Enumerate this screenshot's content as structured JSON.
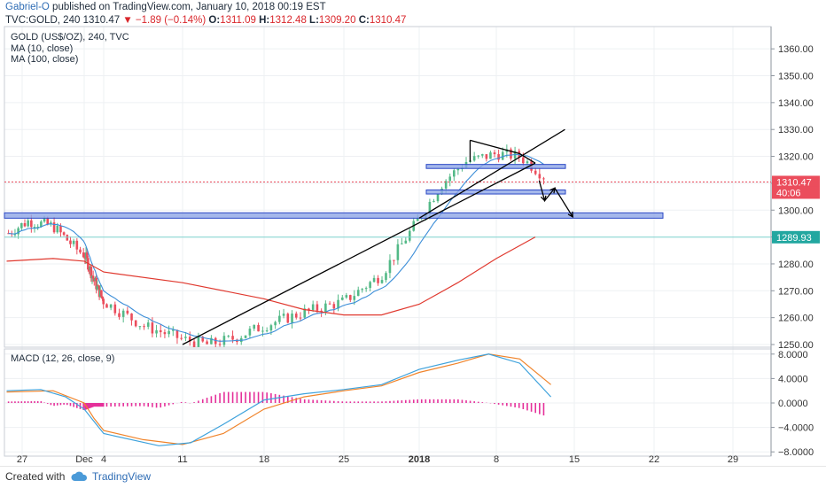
{
  "header": {
    "author": "Gabriel-O",
    "published": " published on TradingView.com, January 10, 2018 00:19 EST",
    "symbol": "TVC:GOLD, 240",
    "last": "1310.47",
    "change": "▼ −1.89 (−0.14%)",
    "o_label": "O:",
    "o": "1311.09",
    "h_label": "H:",
    "h": "1312.48",
    "l_label": "L:",
    "l": "1309.20",
    "c_label": "C:",
    "c": "1310.47"
  },
  "legend": {
    "title": "GOLD (US$/OZ), 240, TVC",
    "ma10": "MA (10, close)",
    "ma100": "MA (100, close)",
    "macd": "MACD (12, 26, close, 9)"
  },
  "footer": {
    "created": "Created with",
    "brand": "TradingView"
  },
  "colors": {
    "up": "#53b987",
    "down": "#eb4d5c",
    "ma10": "#3c8ed8",
    "ma100": "#e0392f",
    "macd_line": "#3ea2dc",
    "signal": "#f0842b",
    "hist": "#e5309a",
    "zone_fill": "#8ea6e6",
    "zone_stroke": "#2a47c5",
    "price_tag": "#eb4d5c",
    "level_tag": "#22a7a0"
  },
  "chart_data": [
    {
      "type": "candlestick",
      "series_name": "GOLD (US$/OZ), 240, TVC",
      "ylim": [
        1250,
        1365
      ],
      "y_ticks": [
        "1360.00",
        "1350.00",
        "1340.00",
        "1330.00",
        "1320.00",
        "1310.00",
        "1300.00",
        "1290.00",
        "1280.00",
        "1270.00",
        "1260.00",
        "1250.00"
      ],
      "x_ticks": [
        "27",
        "Dec",
        "4",
        "11",
        "18",
        "25",
        "2018",
        "8",
        "15",
        "22",
        "29"
      ],
      "last_price": "1310.47",
      "countdown": "40:06",
      "level_line": "1289.93",
      "zones": [
        {
          "from": 1297,
          "to": 1299,
          "start": "27",
          "end": "22"
        },
        {
          "from": 1306,
          "to": 1307.5,
          "start": "2018",
          "end": "15"
        },
        {
          "from": 1315.5,
          "to": 1317,
          "start": "2018",
          "end": "15"
        }
      ],
      "ma_series": [
        "MA (10, close)",
        "MA (100, close)"
      ]
    },
    {
      "type": "line",
      "series_name": "MACD (12, 26, close, 9)",
      "ylim": [
        -8.5,
        9.5
      ],
      "y_ticks": [
        "8.0000",
        "4.0000",
        "0.0000",
        "−4.0000",
        "−8.0000"
      ],
      "lines": [
        "MACD",
        "Signal"
      ],
      "histogram": true
    }
  ]
}
